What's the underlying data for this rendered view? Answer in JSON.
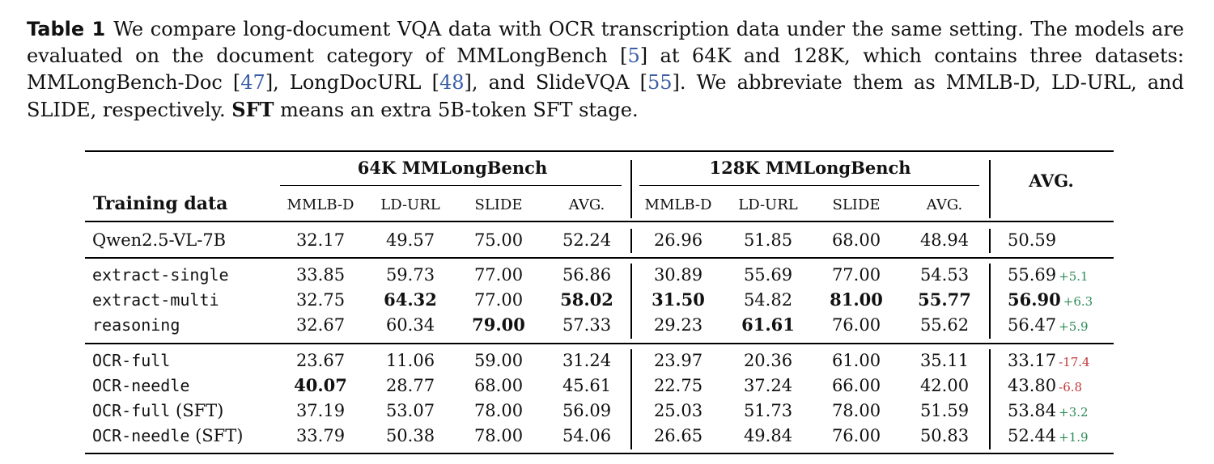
{
  "caption": {
    "label": "Table 1",
    "part1": "We compare long-document VQA data with OCR transcription data under the same setting. The models are evaluated on the document category of MMLongBench [",
    "cite1": "5",
    "part2": "] at 64K and 128K, which contains three datasets: MMLongBench-Doc [",
    "cite2": "47",
    "part3": "], LongDocURL [",
    "cite3": "48",
    "part4": "], and SlideVQA [",
    "cite4": "55",
    "part5": "]. We abbreviate them as MMLB-D, LD-URL, and SLIDE, respectively. ",
    "sft_bold": "SFT",
    "part6": " means an extra 5B-token SFT stage."
  },
  "table": {
    "group_64k": "64K MMLongBench",
    "group_128k": "128K MMLongBench",
    "avg_header": "AVG.",
    "row_header": "Training data",
    "sub_headers": [
      "MMLB-D",
      "LD-URL",
      "SLIDE",
      "AVG.",
      "MMLB-D",
      "LD-URL",
      "SLIDE",
      "AVG."
    ],
    "rows": [
      {
        "name": "Qwen2.5-VL-7B",
        "mono": false,
        "suffix": "",
        "values": [
          "32.17",
          "49.57",
          "75.00",
          "52.24",
          "26.96",
          "51.85",
          "68.00",
          "48.94"
        ],
        "bold": [],
        "avg": "50.59",
        "avg_bold": false,
        "delta": "",
        "delta_sign": ""
      },
      {
        "name": "extract-single",
        "mono": true,
        "suffix": "",
        "values": [
          "33.85",
          "59.73",
          "77.00",
          "56.86",
          "30.89",
          "55.69",
          "77.00",
          "54.53"
        ],
        "bold": [],
        "avg": "55.69",
        "avg_bold": false,
        "delta": "+5.1",
        "delta_sign": "pos"
      },
      {
        "name": "extract-multi",
        "mono": true,
        "suffix": "",
        "values": [
          "32.75",
          "64.32",
          "77.00",
          "58.02",
          "31.50",
          "54.82",
          "81.00",
          "55.77"
        ],
        "bold": [
          1,
          3,
          4,
          6,
          7
        ],
        "avg": "56.90",
        "avg_bold": true,
        "delta": "+6.3",
        "delta_sign": "pos"
      },
      {
        "name": "reasoning",
        "mono": true,
        "suffix": "",
        "values": [
          "32.67",
          "60.34",
          "79.00",
          "57.33",
          "29.23",
          "61.61",
          "76.00",
          "55.62"
        ],
        "bold": [
          2,
          5
        ],
        "avg": "56.47",
        "avg_bold": false,
        "delta": "+5.9",
        "delta_sign": "pos"
      },
      {
        "name": "OCR-full",
        "mono": true,
        "suffix": "",
        "values": [
          "23.67",
          "11.06",
          "59.00",
          "31.24",
          "23.97",
          "20.36",
          "61.00",
          "35.11"
        ],
        "bold": [],
        "avg": "33.17",
        "avg_bold": false,
        "delta": "-17.4",
        "delta_sign": "neg"
      },
      {
        "name": "OCR-needle",
        "mono": true,
        "suffix": "",
        "values": [
          "40.07",
          "28.77",
          "68.00",
          "45.61",
          "22.75",
          "37.24",
          "66.00",
          "42.00"
        ],
        "bold": [
          0
        ],
        "avg": "43.80",
        "avg_bold": false,
        "delta": "-6.8",
        "delta_sign": "neg"
      },
      {
        "name": "OCR-full",
        "mono": true,
        "suffix": " (SFT)",
        "values": [
          "37.19",
          "53.07",
          "78.00",
          "56.09",
          "25.03",
          "51.73",
          "78.00",
          "51.59"
        ],
        "bold": [],
        "avg": "53.84",
        "avg_bold": false,
        "delta": "+3.2",
        "delta_sign": "pos"
      },
      {
        "name": "OCR-needle",
        "mono": true,
        "suffix": " (SFT)",
        "values": [
          "33.79",
          "50.38",
          "78.00",
          "54.06",
          "26.65",
          "49.84",
          "76.00",
          "50.83"
        ],
        "bold": [],
        "avg": "52.44",
        "avg_bold": false,
        "delta": "+1.9",
        "delta_sign": "pos"
      }
    ]
  }
}
